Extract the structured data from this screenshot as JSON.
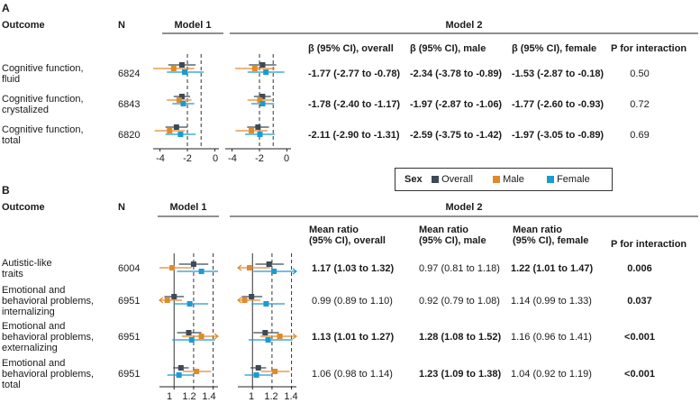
{
  "panelA": {
    "label": "A",
    "col_outcome": "Outcome",
    "col_n": "N",
    "model1": "Model 1",
    "model2": "Model 2",
    "headers": [
      "β (95% CI), overall",
      "β (95% CI), male",
      "β (95% CI), female",
      "P for interaction"
    ],
    "rows": [
      {
        "outcome": "Cognitive function,\nfluid",
        "n": "6824",
        "overall": "-1.77 (-2.77 to -0.78)",
        "male": "-2.34 (-3.78 to -0.89)",
        "female": "-1.53 (-2.87 to -0.18)",
        "p": "0.50"
      },
      {
        "outcome": "Cognitive function,\ncrystalized",
        "n": "6843",
        "overall": "-1.78 (-2.40 to -1.17)",
        "male": "-1.97 (-2.87 to -1.06)",
        "female": "-1.77 (-2.60 to -0.93)",
        "p": "0.72"
      },
      {
        "outcome": "Cognitive function,\ntotal",
        "n": "6820",
        "overall": "-2.11 (-2.90 to -1.31)",
        "male": "-2.59 (-3.75 to -1.42)",
        "female": "-1.97 (-3.05 to -0.89)",
        "p": "0.69"
      }
    ],
    "ticks": [
      "-4",
      "-2",
      "0"
    ]
  },
  "legend": {
    "title": "Sex",
    "items": [
      {
        "label": "Overall",
        "color": "#3d4a55"
      },
      {
        "label": "Male",
        "color": "#e08a2c"
      },
      {
        "label": "Female",
        "color": "#1c9bd1"
      }
    ]
  },
  "panelB": {
    "label": "B",
    "col_outcome": "Outcome",
    "col_n": "N",
    "model1": "Model 1",
    "model2": "Model 2",
    "headers": [
      "Mean ratio\n(95% CI), overall",
      "Mean ratio\n(95% CI), male",
      "Mean ratio\n(95% CI), female",
      "P for interaction"
    ],
    "rows": [
      {
        "outcome": "Autistic-like\ntraits",
        "n": "6004",
        "overall": "1.17 (1.03 to 1.32)",
        "male": "0.97 (0.81 to 1.18)",
        "female": "1.22 (1.01 to 1.47)",
        "p": "0.006",
        "bold": [
          true,
          false,
          true,
          true
        ]
      },
      {
        "outcome": "Emotional and\nbehavioral problems,\ninternalizing",
        "n": "6951",
        "overall": "0.99 (0.89 to 1.10)",
        "male": "0.92 (0.79 to 1.08)",
        "female": "1.14 (0.99 to 1.33)",
        "p": "0.037",
        "bold": [
          false,
          false,
          false,
          true
        ]
      },
      {
        "outcome": "Emotional and\nbehavioral problems,\nexternalizing",
        "n": "6951",
        "overall": "1.13 (1.01 to 1.27)",
        "male": "1.28 (1.08 to 1.52)",
        "female": "1.16 (0.96 to 1.41)",
        "p": "<0.001",
        "bold": [
          true,
          true,
          false,
          true
        ]
      },
      {
        "outcome": "Emotional and\nbehavioral problems,\ntotal",
        "n": "6951",
        "overall": "1.06 (0.98 to 1.14)",
        "male": "1.23 (1.09 to 1.38)",
        "female": "1.04 (0.92 to 1.19)",
        "p": "<0.001",
        "bold": [
          false,
          true,
          false,
          true
        ]
      }
    ],
    "ticks": [
      "1",
      "1.2",
      "1.4"
    ]
  },
  "chart_data": [
    {
      "type": "forest",
      "title": "Panel A Model 1",
      "xlim": [
        -4.5,
        0.3
      ],
      "ticks": [
        -4,
        -2,
        0
      ],
      "ref_lines": [
        -1,
        -2
      ],
      "series": [
        {
          "name": "Overall",
          "rows": [
            [
              -2.4,
              -3.4,
              -1.4
            ],
            [
              -2.4,
              -3.0,
              -1.8
            ],
            [
              -2.8,
              -3.6,
              -2.0
            ]
          ]
        },
        {
          "name": "Male",
          "rows": [
            [
              -3.0,
              -4.5,
              -1.5
            ],
            [
              -2.6,
              -3.5,
              -1.7
            ],
            [
              -3.3,
              -4.4,
              -2.2
            ]
          ]
        },
        {
          "name": "Female",
          "rows": [
            [
              -2.2,
              -3.5,
              -0.8
            ],
            [
              -2.3,
              -3.1,
              -1.5
            ],
            [
              -2.5,
              -3.6,
              -1.4
            ]
          ]
        }
      ],
      "arrows_left": [
        [
          1,
          0
        ]
      ]
    },
    {
      "type": "forest",
      "title": "Panel A Model 2",
      "xlim": [
        -4.5,
        0.3
      ],
      "ticks": [
        -4,
        -2,
        0
      ],
      "ref_lines": [
        -1,
        -2
      ],
      "series": [
        {
          "name": "Overall",
          "values": [
            -1.77,
            -1.78,
            -2.11
          ],
          "lower": [
            -2.77,
            -2.4,
            -2.9
          ],
          "upper": [
            -0.78,
            -1.17,
            -1.31
          ]
        },
        {
          "name": "Male",
          "values": [
            -2.34,
            -1.97,
            -2.59
          ],
          "lower": [
            -3.78,
            -2.87,
            -3.75
          ],
          "upper": [
            -0.89,
            -1.06,
            -1.42
          ]
        },
        {
          "name": "Female",
          "values": [
            -1.53,
            -1.77,
            -1.97
          ],
          "lower": [
            -2.87,
            -2.6,
            -3.05
          ],
          "upper": [
            -0.18,
            -0.93,
            -0.89
          ]
        }
      ]
    },
    {
      "type": "forest",
      "title": "Panel B Model 1",
      "xlim": [
        0.85,
        1.45
      ],
      "ticks": [
        1,
        1.2,
        1.4
      ],
      "ref_lines": [
        1,
        1.2,
        1.4
      ],
      "series": [
        {
          "name": "Overall",
          "rows": [
            [
              1.2,
              1.05,
              1.35
            ],
            [
              1.0,
              0.9,
              1.1
            ],
            [
              1.15,
              1.03,
              1.28
            ],
            [
              1.07,
              0.99,
              1.15
            ]
          ]
        },
        {
          "name": "Male",
          "rows": [
            [
              0.98,
              0.85,
              1.18
            ],
            [
              0.93,
              0.82,
              1.08
            ],
            [
              1.28,
              1.08,
              1.5
            ],
            [
              1.23,
              1.09,
              1.38
            ]
          ]
        },
        {
          "name": "Female",
          "rows": [
            [
              1.28,
              1.03,
              1.45
            ],
            [
              1.16,
              1.0,
              1.35
            ],
            [
              1.18,
              0.98,
              1.42
            ],
            [
              1.05,
              0.93,
              1.2
            ]
          ]
        }
      ]
    },
    {
      "type": "forest",
      "title": "Panel B Model 2",
      "xlim": [
        0.85,
        1.45
      ],
      "ticks": [
        1,
        1.2,
        1.4
      ],
      "ref_lines": [
        1,
        1.2,
        1.4
      ],
      "series": [
        {
          "name": "Overall",
          "values": [
            1.17,
            0.99,
            1.13,
            1.06
          ],
          "lower": [
            1.03,
            0.89,
            1.01,
            0.98
          ],
          "upper": [
            1.32,
            1.1,
            1.27,
            1.14
          ]
        },
        {
          "name": "Male",
          "values": [
            0.97,
            0.92,
            1.28,
            1.23
          ],
          "lower": [
            0.81,
            0.79,
            1.08,
            1.09
          ],
          "upper": [
            1.18,
            1.08,
            1.52,
            1.38
          ]
        },
        {
          "name": "Female",
          "values": [
            1.22,
            1.14,
            1.16,
            1.04
          ],
          "lower": [
            1.01,
            0.99,
            0.96,
            0.92
          ],
          "upper": [
            1.47,
            1.33,
            1.41,
            1.19
          ]
        }
      ]
    }
  ]
}
